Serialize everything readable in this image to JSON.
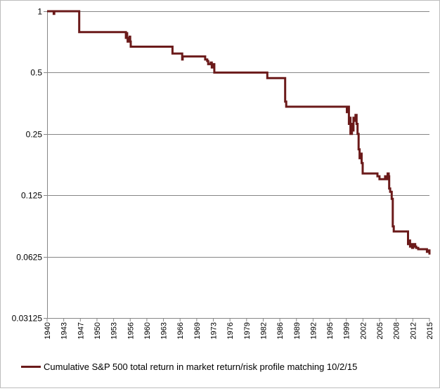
{
  "chart_data": {
    "type": "line",
    "title": "",
    "xlabel": "",
    "ylabel": "",
    "yscale": "log2",
    "ylim": [
      0.03125,
      1
    ],
    "xlim": [
      1940,
      2015
    ],
    "y_ticks": [
      "1",
      "0.5",
      "0.25",
      "0.125",
      "0.0625",
      "0.03125"
    ],
    "y_tick_values": [
      1,
      0.5,
      0.25,
      0.125,
      0.0625,
      0.03125
    ],
    "x_ticks": [
      "1940",
      "1943",
      "1947",
      "1950",
      "1953",
      "1956",
      "1960",
      "1963",
      "1966",
      "1969",
      "1973",
      "1976",
      "1979",
      "1982",
      "1986",
      "1989",
      "1992",
      "1995",
      "1999",
      "2002",
      "2005",
      "2008",
      "2012",
      "2015"
    ],
    "grid": "horizontal",
    "legend_position": "bottom",
    "line_color": "#6b1a1a",
    "series": [
      {
        "name": "Cumulative S&P 500 total return in market return/risk profile matching 10/2/15",
        "x": [
          1940.0,
          1941.2,
          1941.3,
          1941.4,
          1946.3,
          1955.4,
          1955.45,
          1955.5,
          1955.7,
          1955.8,
          1956.2,
          1956.3,
          1956.4,
          1957.8,
          1964.5,
          1964.6,
          1965.2,
          1966.4,
          1966.5,
          1966.6,
          1970.7,
          1971.0,
          1971.4,
          1971.6,
          1972.1,
          1972.3,
          1972.5,
          1972.8,
          1972.9,
          1983.0,
          1983.2,
          1986.5,
          1986.7,
          1986.9,
          1998.6,
          1998.8,
          1998.9,
          1999.2,
          1999.4,
          1999.5,
          1999.8,
          2000.0,
          2000.1,
          2000.3,
          2000.5,
          2000.7,
          2000.9,
          2001.1,
          2001.3,
          2001.5,
          2001.7,
          2001.9,
          2002.3,
          2002.6,
          2004.8,
          2005.2,
          2006.0,
          2006.3,
          2006.5,
          2006.8,
          2006.9,
          2007.0,
          2007.1,
          2007.3,
          2007.6,
          2007.8,
          2008.0,
          2008.05,
          2010.7,
          2010.8,
          2011.0,
          2011.2,
          2011.4,
          2011.6,
          2011.8,
          2012.2,
          2012.4,
          2012.8,
          2013.3,
          2014.5,
          2014.8,
          2015.0
        ],
        "y": [
          1.0,
          1.0,
          0.97,
          1.0,
          0.79,
          0.79,
          0.74,
          0.78,
          0.74,
          0.71,
          0.75,
          0.71,
          0.67,
          0.67,
          0.67,
          0.62,
          0.62,
          0.62,
          0.58,
          0.6,
          0.6,
          0.58,
          0.57,
          0.55,
          0.56,
          0.53,
          0.55,
          0.5,
          0.5,
          0.5,
          0.47,
          0.47,
          0.36,
          0.34,
          0.34,
          0.32,
          0.34,
          0.28,
          0.3,
          0.25,
          0.28,
          0.26,
          0.3,
          0.29,
          0.31,
          0.28,
          0.25,
          0.21,
          0.19,
          0.2,
          0.18,
          0.16,
          0.16,
          0.16,
          0.155,
          0.15,
          0.15,
          0.155,
          0.15,
          0.16,
          0.16,
          0.155,
          0.135,
          0.13,
          0.12,
          0.088,
          0.083,
          0.083,
          0.083,
          0.072,
          0.075,
          0.07,
          0.072,
          0.069,
          0.072,
          0.07,
          0.069,
          0.068,
          0.068,
          0.066,
          0.067,
          0.064
        ]
      }
    ]
  }
}
